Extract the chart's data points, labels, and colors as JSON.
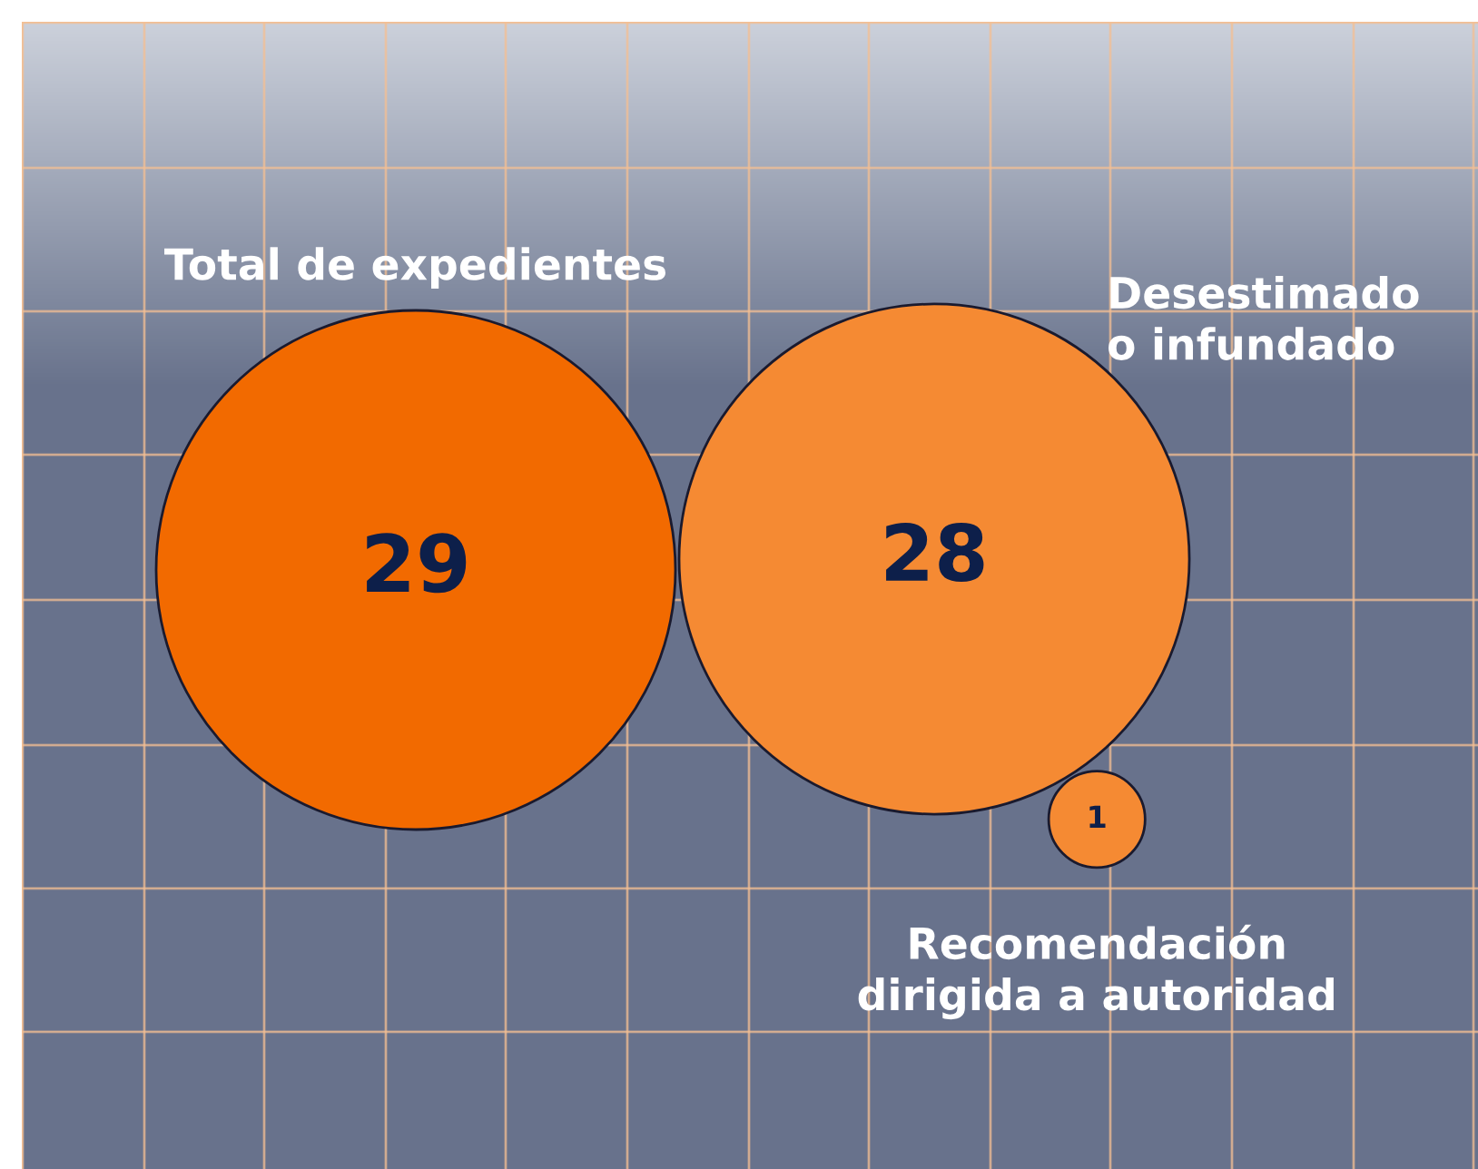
{
  "chart_data": {
    "type": "other",
    "categories": [
      "Total de expedientes",
      "Desestimado\no infundado",
      "Recomendación\ndirigida a autoridad"
    ],
    "values": [
      29,
      28,
      1
    ],
    "colors": [
      "#f26a00",
      "#f58a33",
      "#f58a33"
    ],
    "data_labels": true
  }
}
